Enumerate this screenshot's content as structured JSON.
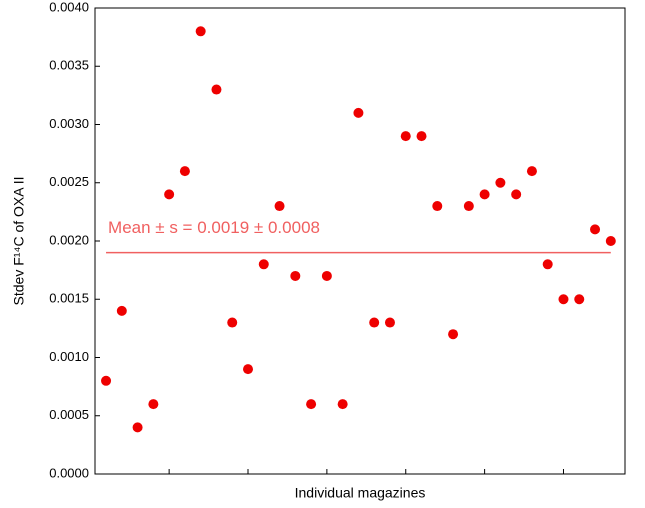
{
  "chart_data": {
    "type": "scatter",
    "xlabel": "Individual magazines",
    "ylabel": "Stdev F¹⁴C of OXA II",
    "x": [
      1,
      2,
      3,
      4,
      5,
      6,
      7,
      8,
      9,
      10,
      11,
      12,
      13,
      14,
      15,
      16,
      17,
      18,
      19,
      20,
      21,
      22,
      23,
      24,
      25,
      26,
      27,
      28,
      29,
      30,
      31,
      32,
      33
    ],
    "values": [
      0.0008,
      0.0014,
      0.0004,
      0.0006,
      0.0024,
      0.0026,
      0.0038,
      0.0033,
      0.0013,
      0.0009,
      0.0018,
      0.0023,
      0.0017,
      0.0006,
      0.0017,
      0.0006,
      0.0031,
      0.0013,
      0.0013,
      0.0029,
      0.0029,
      0.0023,
      0.0012,
      0.0023,
      0.0024,
      0.0025,
      0.0024,
      0.0026,
      0.0018,
      0.0015,
      0.0015,
      0.0021,
      0.002
    ],
    "color": "#ee0000",
    "xlim": [
      0.3,
      33.9
    ],
    "xticks": [
      5,
      10,
      15,
      20,
      25,
      30
    ],
    "ylim": [
      0,
      0.004
    ],
    "yticks": [
      {
        "value": 0,
        "label": "0.0000"
      },
      {
        "value": 0.0005,
        "label": "0.0005"
      },
      {
        "value": 0.001,
        "label": "0.0010"
      },
      {
        "value": 0.0015,
        "label": "0.0015"
      },
      {
        "value": 0.002,
        "label": "0.0020"
      },
      {
        "value": 0.0025,
        "label": "0.0025"
      },
      {
        "value": 0.003,
        "label": "0.0030"
      },
      {
        "value": 0.0035,
        "label": "0.0035"
      },
      {
        "value": 0.004,
        "label": "0.0040"
      }
    ],
    "mean_line": {
      "value": 0.0019,
      "x": [
        1,
        33
      ],
      "color": "#f06060",
      "label": "Mean ± s = 0.0019 ± 0.0008"
    }
  }
}
